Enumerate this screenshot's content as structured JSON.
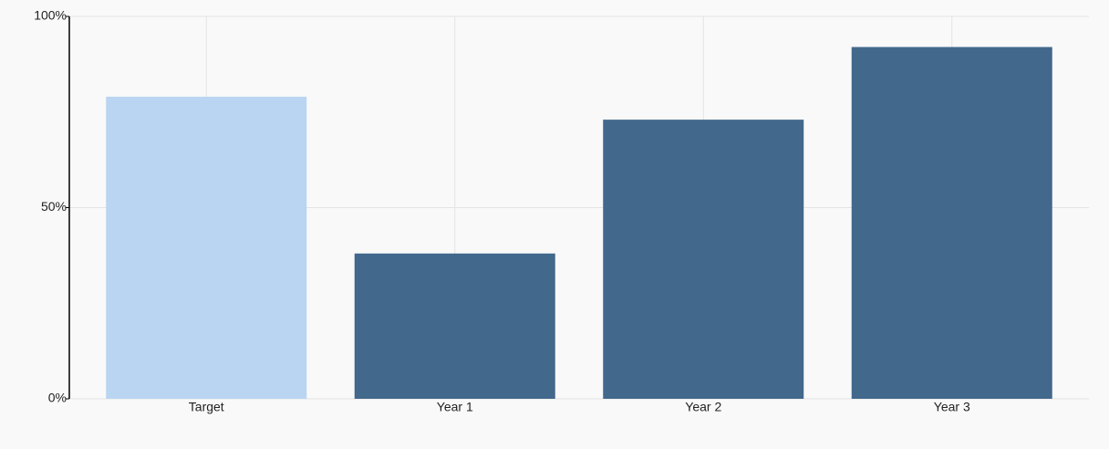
{
  "chart_data": {
    "type": "bar",
    "categories": [
      "Target",
      "Year 1",
      "Year 2",
      "Year 3"
    ],
    "values": [
      79,
      38,
      73,
      92
    ],
    "colors": [
      "#bad5f2",
      "#42688c",
      "#42688c",
      "#42688c"
    ],
    "ylim": [
      0,
      100
    ],
    "yticks": [
      {
        "value": 0,
        "label": "0%"
      },
      {
        "value": 50,
        "label": "50%"
      },
      {
        "value": 100,
        "label": "100%"
      }
    ],
    "grid": true
  }
}
